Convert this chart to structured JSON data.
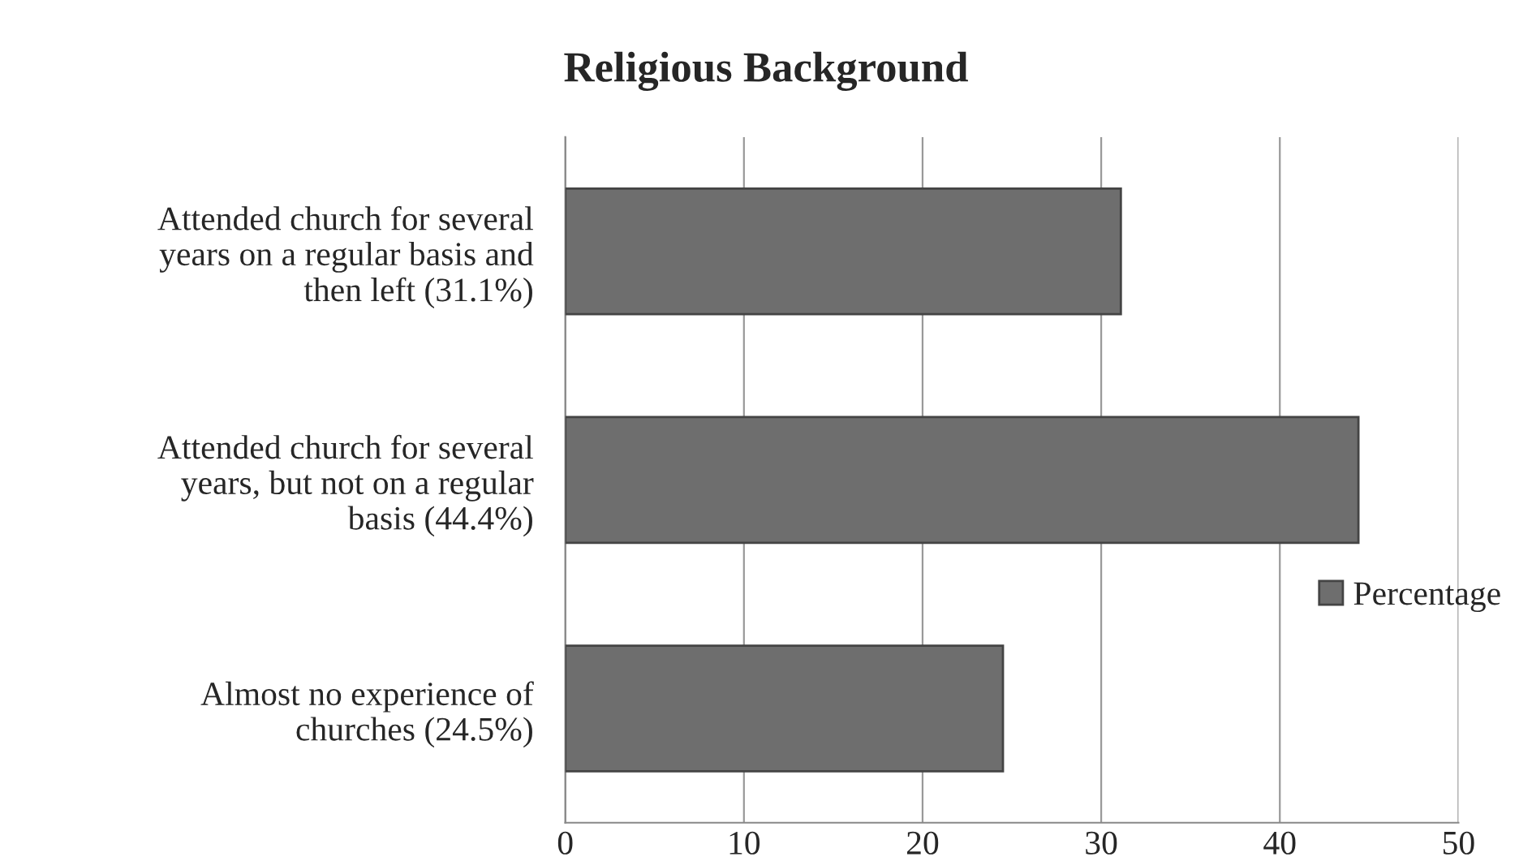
{
  "chart_data": {
    "type": "bar",
    "orientation": "horizontal",
    "title": "Religious Background",
    "categories": [
      "Attended church for several years on a regular basis and then left (31.1%)",
      "Attended church for several years, but not on a regular basis (44.4%)",
      "Almost no experience of churches (24.5%)"
    ],
    "series": [
      {
        "name": "Percentage",
        "color": "#6e6e6e",
        "values": [
          31.1,
          44.4,
          24.5
        ]
      }
    ],
    "xlim": [
      0,
      50
    ],
    "xticks": [
      0,
      10,
      20,
      30,
      40,
      50
    ],
    "grid": "x",
    "legend": "right"
  }
}
